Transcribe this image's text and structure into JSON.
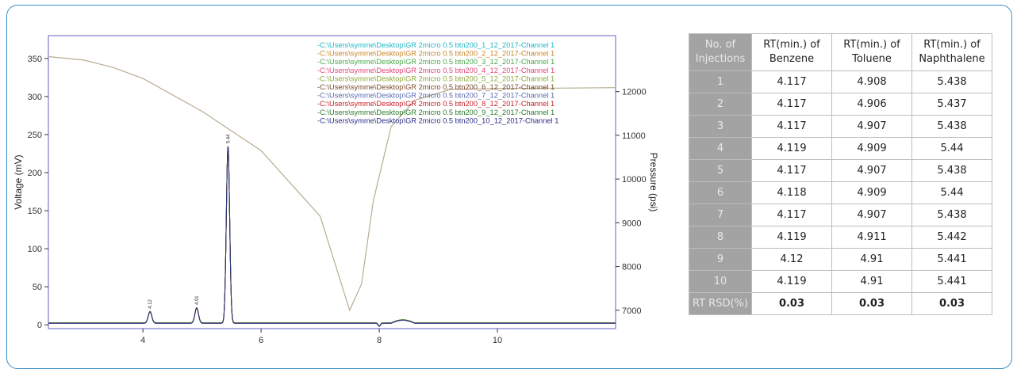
{
  "chart_data": {
    "type": "line",
    "title": "",
    "xlabel": "",
    "ylabel": "Voltage (mV)",
    "y2label": "Pressure (psi)",
    "xlim": [
      2.4,
      12.0
    ],
    "ylim": [
      -5,
      380
    ],
    "y2lim": [
      6580,
      13280
    ],
    "x_ticks": [
      4,
      6,
      8,
      10
    ],
    "y_ticks": [
      0,
      50,
      100,
      150,
      200,
      250,
      300,
      350
    ],
    "y2_ticks": [
      7000,
      8000,
      9000,
      10000,
      11000,
      12000
    ],
    "legend_position": "top-center",
    "legend": [
      {
        "name": "C:\\Users\\symme\\Desktop\\GR 2micro 0.5 btn200_1_12_2017-Channel 1",
        "color": "#20b8c8"
      },
      {
        "name": "C:\\Users\\symme\\Desktop\\GR 2micro 0.5 btn200_2_12_2017-Channel 1",
        "color": "#c8862a"
      },
      {
        "name": "C:\\Users\\symme\\Desktop\\GR 2micro 0.5 btn200_3_12_2017-Channel 1",
        "color": "#4aa84a"
      },
      {
        "name": "C:\\Users\\symme\\Desktop\\GR 2micro 0.5 btn200_4_12_2017-Channel 1",
        "color": "#e0457a"
      },
      {
        "name": "C:\\Users\\symme\\Desktop\\GR 2micro 0.5 btn200_5_12_2017-Channel 1",
        "color": "#8aa83a"
      },
      {
        "name": "C:\\Users\\symme\\Desktop\\GR 2micro 0.5 btn200_6_12_2017-Channel 1",
        "color": "#7a4a2a"
      },
      {
        "name": "C:\\Users\\symme\\Desktop\\GR 2micro 0.5 btn200_7_12_2017-Channel 1",
        "color": "#5a6ab0"
      },
      {
        "name": "C:\\Users\\symme\\Desktop\\GR 2micro 0.5 btn200_8_12_2017-Channel 1",
        "color": "#c8202a"
      },
      {
        "name": "C:\\Users\\symme\\Desktop\\GR 2micro 0.5 btn200_9_12_2017-Channel 1",
        "color": "#2a7a2a"
      },
      {
        "name": "C:\\Users\\symme\\Desktop\\GR 2micro 0.5 btn200_10_12_2017-Channel 1",
        "color": "#2a2a8a"
      }
    ],
    "peaks": [
      {
        "rt": 4.12,
        "label": "4.12",
        "height": 15
      },
      {
        "rt": 4.91,
        "label": "4.91",
        "height": 20
      },
      {
        "rt": 5.44,
        "label": "5.44",
        "height": 232
      }
    ],
    "pressure_trace": {
      "color": "#b8ad92",
      "points": [
        [
          2.4,
          12800
        ],
        [
          3.0,
          12720
        ],
        [
          3.5,
          12550
        ],
        [
          4.0,
          12300
        ],
        [
          5.0,
          11550
        ],
        [
          6.0,
          10650
        ],
        [
          7.0,
          9150
        ],
        [
          7.5,
          7000
        ],
        [
          7.7,
          7600
        ],
        [
          7.9,
          9500
        ],
        [
          8.2,
          11200
        ],
        [
          8.6,
          11800
        ],
        [
          9.2,
          12050
        ],
        [
          10.0,
          12070
        ],
        [
          11.0,
          12080
        ],
        [
          12.0,
          12090
        ]
      ]
    },
    "baseline_dip": {
      "x": 8.0,
      "depth": -4
    },
    "baseline_bump": {
      "x_start": 8.2,
      "x_end": 8.6,
      "height": 4
    }
  },
  "table": {
    "header_col0": "No. of Injections",
    "headers": [
      "RT(min.) of Benzene",
      "RT(min.) of Toluene",
      "RT(min.) of Naphthalene"
    ],
    "rows": [
      {
        "label": "1",
        "values": [
          "4.117",
          "4.908",
          "5.438"
        ]
      },
      {
        "label": "2",
        "values": [
          "4.117",
          "4.906",
          "5.437"
        ]
      },
      {
        "label": "3",
        "values": [
          "4.117",
          "4.907",
          "5.438"
        ]
      },
      {
        "label": "4",
        "values": [
          "4.119",
          "4.909",
          "5.44"
        ]
      },
      {
        "label": "5",
        "values": [
          "4.117",
          "4.907",
          "5.438"
        ]
      },
      {
        "label": "6",
        "values": [
          "4.118",
          "4.909",
          "5.44"
        ]
      },
      {
        "label": "7",
        "values": [
          "4.117",
          "4.907",
          "5.438"
        ]
      },
      {
        "label": "8",
        "values": [
          "4.119",
          "4.911",
          "5.442"
        ]
      },
      {
        "label": "9",
        "values": [
          "4.12",
          "4.91",
          "5.441"
        ]
      },
      {
        "label": "10",
        "values": [
          "4.119",
          "4.91",
          "5.441"
        ]
      }
    ],
    "rsd": {
      "label": "RT RSD(%)",
      "values": [
        "0.03",
        "0.03",
        "0.03"
      ]
    }
  }
}
